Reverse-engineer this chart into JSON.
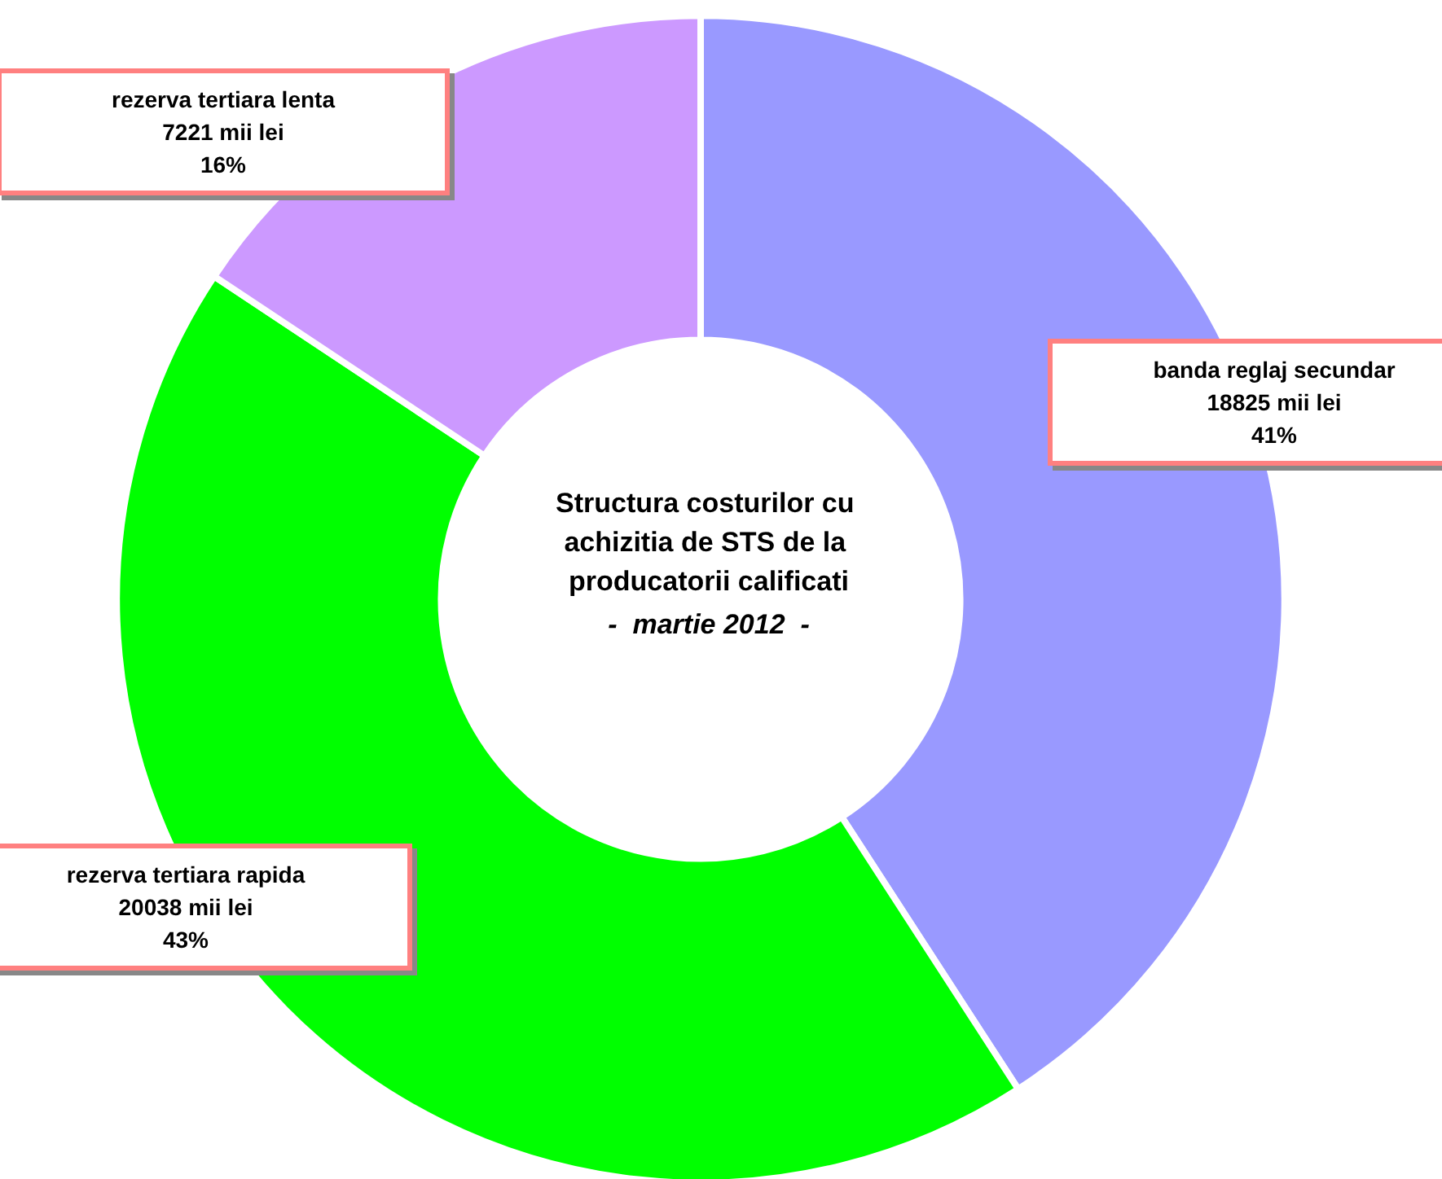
{
  "chart_data": {
    "type": "donut",
    "title": "Structura costurilor cu achizitia de STS de la producatorii calificati",
    "subtitle": "-  martie 2012  -",
    "categories": [
      "banda reglaj secundar",
      "rezerva tertiara rapida",
      "rezerva tertiara lenta"
    ],
    "values": [
      18825,
      20038,
      7221
    ],
    "value_labels": [
      "18825 mii lei\n41%",
      "20038 mii lei\n43%",
      "7221 mii lei\n16%"
    ],
    "colors": [
      "#9999ff",
      "#00ff00",
      "#cc99ff"
    ]
  }
}
